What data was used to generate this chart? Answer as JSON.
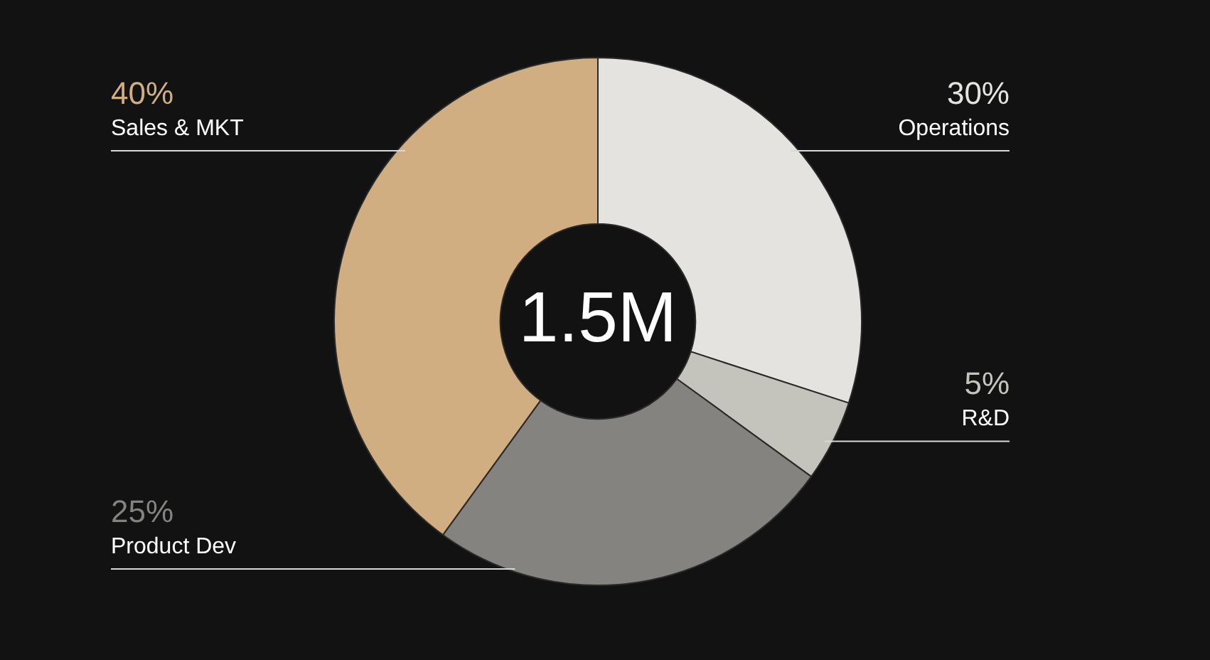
{
  "chart_data": {
    "type": "donut",
    "categories": [
      "Operations",
      "R&D",
      "Product Dev",
      "Sales & MKT"
    ],
    "values": [
      30,
      5,
      25,
      40
    ],
    "colors": [
      "#e4e3df",
      "#c4c3bc",
      "#858380",
      "#d1ad82"
    ],
    "data_labels": true,
    "value_labels": [
      "30%",
      "5%",
      "25%",
      "40%"
    ],
    "legend": false,
    "annotations": [
      "1.5M"
    ]
  }
}
